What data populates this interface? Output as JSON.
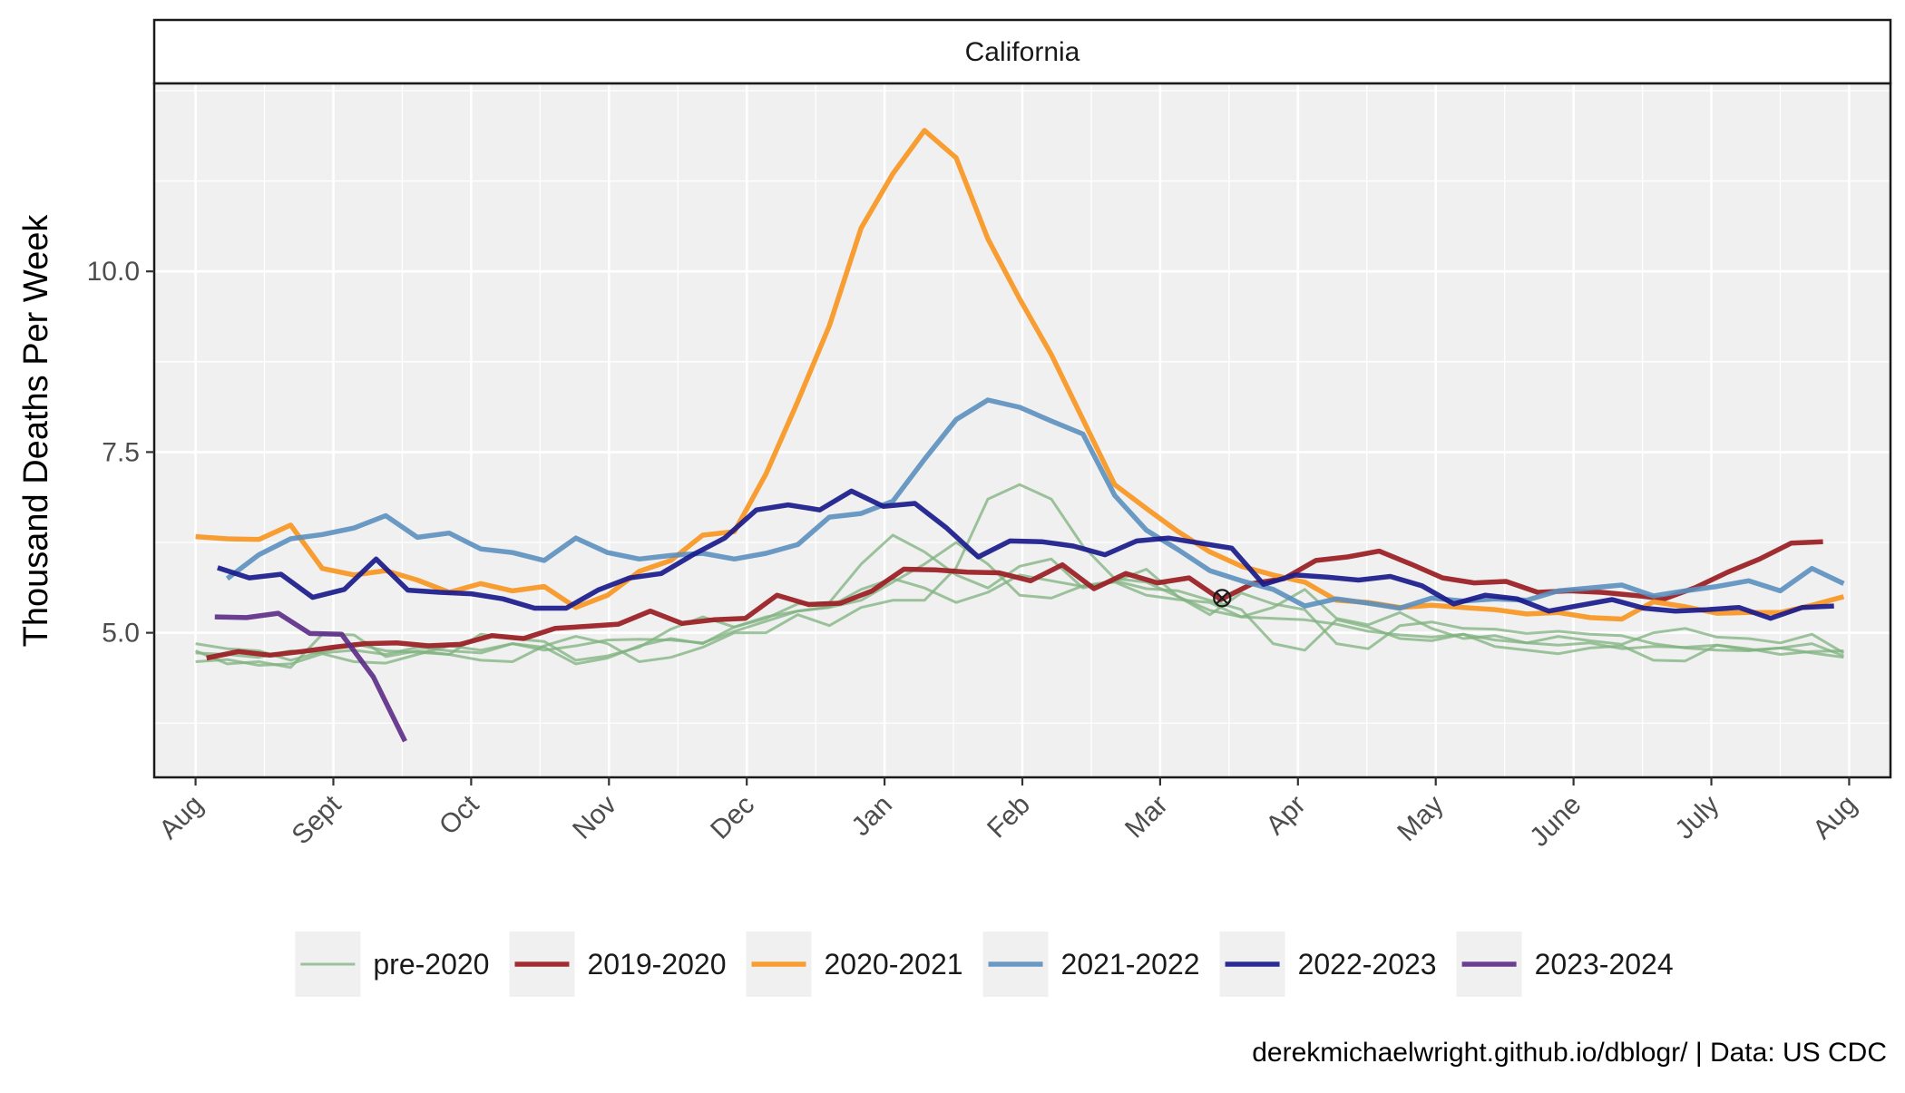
{
  "chart_data": {
    "type": "line",
    "facet_title": "California",
    "ylabel": "Thousand Deaths Per Week",
    "xlabel": "",
    "ylim": [
      3.0,
      12.6
    ],
    "yticks": [
      5.0,
      7.5,
      10.0
    ],
    "ytick_labels": [
      "5.0",
      "7.5",
      "10.0"
    ],
    "xlim": [
      -0.3,
      12.3
    ],
    "xticks": [
      0,
      1,
      2,
      3,
      4,
      5,
      6,
      7,
      8,
      9,
      10,
      11,
      12
    ],
    "xtick_labels": [
      "Aug",
      "Sept",
      "Oct",
      "Nov",
      "Dec",
      "Jan",
      "Feb",
      "Mar",
      "Apr",
      "May",
      "June",
      "July",
      "Aug"
    ],
    "x_unit": "months since Aug 1",
    "grid": true,
    "legend_position": "bottom",
    "caption": "derekmichaelwright.github.io/dblogr/ | Data: US CDC",
    "marker": {
      "x": 7.45,
      "y": 5.48,
      "symbol": "circled-x"
    },
    "series": [
      {
        "name": "pre-2020",
        "color": "#7fb27f",
        "opacity": 0.75,
        "width": 3,
        "group": "pre",
        "x": [
          0,
          0.23,
          0.46,
          0.69,
          0.92,
          1.15,
          1.38,
          1.61,
          1.84,
          2.07,
          2.3,
          2.53,
          2.76,
          2.99,
          3.22,
          3.45,
          3.68,
          3.91,
          4.14,
          4.37,
          4.6,
          4.83,
          5.06,
          5.29,
          5.52,
          5.75,
          5.98,
          6.21,
          6.44,
          6.67,
          6.9,
          7.13,
          7.36,
          7.59,
          7.82,
          8.05,
          8.28,
          8.51,
          8.74,
          8.97,
          9.2,
          9.43,
          9.66,
          9.89,
          10.12,
          10.35,
          10.58,
          10.81,
          11.04,
          11.27,
          11.5,
          11.73,
          11.96
        ],
        "y": [
          4.75,
          4.57,
          4.6,
          4.52,
          4.98,
          4.97,
          4.67,
          4.75,
          4.7,
          4.62,
          4.6,
          4.82,
          4.95,
          4.85,
          4.6,
          4.66,
          4.8,
          5.0,
          5.0,
          5.25,
          5.1,
          5.35,
          5.45,
          5.45,
          5.9,
          6.85,
          7.05,
          6.85,
          6.2,
          5.75,
          5.7,
          5.5,
          5.25,
          5.55,
          5.4,
          5.32,
          4.85,
          4.78,
          5.1,
          5.15,
          5.06,
          5.05,
          4.99,
          5.02,
          4.98,
          4.96,
          4.85,
          4.79,
          4.76,
          4.75,
          4.79,
          4.72,
          4.66
        ]
      },
      {
        "name": "pre-2020",
        "color": "#7fb27f",
        "opacity": 0.75,
        "width": 3,
        "group": "pre",
        "x": [
          0,
          0.23,
          0.46,
          0.69,
          0.92,
          1.15,
          1.38,
          1.61,
          1.84,
          2.07,
          2.3,
          2.53,
          2.76,
          2.99,
          3.22,
          3.45,
          3.68,
          3.91,
          4.14,
          4.37,
          4.6,
          4.83,
          5.06,
          5.29,
          5.52,
          5.75,
          5.98,
          6.21,
          6.44,
          6.67,
          6.9,
          7.13,
          7.36,
          7.59,
          7.82,
          8.05,
          8.28,
          8.51,
          8.74,
          8.97,
          9.2,
          9.43,
          9.66,
          9.89,
          10.12,
          10.35,
          10.58,
          10.81,
          11.04,
          11.27,
          11.5,
          11.73,
          11.96
        ],
        "y": [
          4.85,
          4.78,
          4.75,
          4.62,
          4.74,
          4.85,
          4.75,
          4.73,
          4.7,
          4.98,
          4.92,
          4.88,
          4.62,
          4.68,
          4.8,
          5.05,
          5.22,
          5.08,
          5.2,
          5.4,
          5.42,
          5.95,
          6.35,
          6.12,
          5.8,
          5.62,
          5.92,
          6.02,
          5.62,
          5.71,
          5.88,
          5.5,
          5.31,
          5.22,
          5.35,
          5.6,
          5.2,
          5.11,
          5.28,
          5.06,
          4.92,
          4.96,
          4.86,
          4.95,
          4.89,
          4.84,
          5.0,
          5.06,
          4.94,
          4.92,
          4.86,
          4.98,
          4.72
        ]
      },
      {
        "name": "pre-2020",
        "color": "#7fb27f",
        "opacity": 0.75,
        "width": 3,
        "group": "pre",
        "x": [
          0,
          0.23,
          0.46,
          0.69,
          0.92,
          1.15,
          1.38,
          1.61,
          1.84,
          2.07,
          2.3,
          2.53,
          2.76,
          2.99,
          3.22,
          3.45,
          3.68,
          3.91,
          4.14,
          4.37,
          4.6,
          4.83,
          5.06,
          5.29,
          5.52,
          5.75,
          5.98,
          6.21,
          6.44,
          6.67,
          6.9,
          7.13,
          7.36,
          7.59,
          7.82,
          8.05,
          8.28,
          8.51,
          8.74,
          8.97,
          9.2,
          9.43,
          9.66,
          9.89,
          10.12,
          10.35,
          10.58,
          10.81,
          11.04,
          11.27,
          11.5,
          11.73,
          11.96
        ],
        "y": [
          4.6,
          4.63,
          4.55,
          4.57,
          4.71,
          4.6,
          4.58,
          4.7,
          4.82,
          4.76,
          4.85,
          4.8,
          4.57,
          4.65,
          4.82,
          4.92,
          4.85,
          5.08,
          5.22,
          5.3,
          5.35,
          5.45,
          5.7,
          5.95,
          6.25,
          5.95,
          5.52,
          5.48,
          5.65,
          5.72,
          5.61,
          5.58,
          5.45,
          5.32,
          4.85,
          4.76,
          5.18,
          5.08,
          4.92,
          4.89,
          4.98,
          4.81,
          4.76,
          4.71,
          4.79,
          4.82,
          4.62,
          4.61,
          4.83,
          4.76,
          4.79,
          4.85,
          4.68
        ]
      },
      {
        "name": "pre-2020",
        "color": "#7fb27f",
        "opacity": 0.75,
        "width": 3,
        "group": "pre",
        "x": [
          0,
          0.23,
          0.46,
          0.69,
          0.92,
          1.15,
          1.38,
          1.61,
          1.84,
          2.07,
          2.3,
          2.53,
          2.76,
          2.99,
          3.22,
          3.45,
          3.68,
          3.91,
          4.14,
          4.37,
          4.6,
          4.83,
          5.06,
          5.29,
          5.52,
          5.75,
          5.98,
          6.21,
          6.44,
          6.67,
          6.9,
          7.13,
          7.36,
          7.59,
          7.82,
          8.05,
          8.28,
          8.51,
          8.74,
          8.97,
          9.2,
          9.43,
          9.66,
          9.89,
          10.12,
          10.35,
          10.58,
          10.81,
          11.04,
          11.27,
          11.5,
          11.73,
          11.96
        ],
        "y": [
          4.72,
          4.7,
          4.66,
          4.75,
          4.72,
          4.76,
          4.7,
          4.8,
          4.75,
          4.72,
          4.85,
          4.76,
          4.82,
          4.9,
          4.91,
          4.9,
          4.86,
          5.02,
          5.16,
          5.3,
          5.36,
          5.6,
          5.75,
          5.62,
          5.42,
          5.56,
          5.8,
          5.72,
          5.64,
          5.7,
          5.52,
          5.46,
          5.42,
          5.22,
          5.2,
          5.18,
          5.12,
          5.02,
          4.97,
          4.94,
          4.98,
          4.9,
          4.86,
          4.83,
          4.86,
          4.78,
          4.81,
          4.8,
          4.83,
          4.78,
          4.7,
          4.74,
          4.75
        ]
      },
      {
        "name": "2019-2020",
        "color": "#9b2226",
        "opacity": 0.95,
        "width": 5.5,
        "group": "main",
        "x": [
          0.08,
          0.31,
          0.54,
          0.77,
          1.0,
          1.23,
          1.46,
          1.69,
          1.92,
          2.15,
          2.38,
          2.61,
          2.84,
          3.07,
          3.3,
          3.53,
          3.76,
          3.99,
          4.22,
          4.45,
          4.68,
          4.91,
          5.14,
          5.37,
          5.6,
          5.83,
          6.06,
          6.29,
          6.52,
          6.75,
          6.98,
          7.21,
          7.44,
          7.67,
          7.9,
          8.13,
          8.36,
          8.59,
          8.82,
          9.05,
          9.28,
          9.51,
          9.74,
          9.97,
          10.2,
          10.43,
          10.66,
          10.89,
          11.12,
          11.35,
          11.58,
          11.81
        ],
        "y": [
          4.65,
          4.74,
          4.69,
          4.74,
          4.8,
          4.85,
          4.86,
          4.82,
          4.84,
          4.96,
          4.92,
          5.06,
          5.09,
          5.12,
          5.3,
          5.13,
          5.18,
          5.2,
          5.52,
          5.39,
          5.41,
          5.58,
          5.88,
          5.87,
          5.84,
          5.83,
          5.72,
          5.94,
          5.61,
          5.82,
          5.69,
          5.76,
          5.46,
          5.68,
          5.75,
          6.0,
          6.05,
          6.13,
          5.95,
          5.76,
          5.69,
          5.71,
          5.56,
          5.58,
          5.56,
          5.52,
          5.47,
          5.63,
          5.84,
          6.02,
          6.24,
          6.26
        ]
      },
      {
        "name": "2020-2021",
        "color": "#f7941d",
        "opacity": 0.9,
        "width": 5.5,
        "group": "main",
        "x": [
          0.0,
          0.23,
          0.46,
          0.69,
          0.92,
          1.15,
          1.38,
          1.61,
          1.84,
          2.07,
          2.3,
          2.53,
          2.76,
          2.99,
          3.22,
          3.45,
          3.68,
          3.91,
          4.14,
          4.37,
          4.6,
          4.83,
          5.06,
          5.29,
          5.52,
          5.75,
          5.98,
          6.21,
          6.44,
          6.67,
          6.9,
          7.13,
          7.36,
          7.59,
          7.82,
          8.05,
          8.28,
          8.51,
          8.74,
          8.97,
          9.2,
          9.43,
          9.66,
          9.89,
          10.12,
          10.35,
          10.58,
          10.81,
          11.04,
          11.27,
          11.5,
          11.73,
          11.96
        ],
        "y": [
          6.33,
          6.3,
          6.29,
          6.49,
          5.89,
          5.8,
          5.86,
          5.73,
          5.56,
          5.68,
          5.58,
          5.64,
          5.35,
          5.52,
          5.85,
          6.0,
          6.35,
          6.4,
          7.2,
          8.2,
          9.25,
          10.6,
          11.35,
          11.95,
          11.57,
          10.45,
          9.62,
          8.85,
          7.95,
          7.05,
          6.72,
          6.4,
          6.12,
          5.92,
          5.8,
          5.7,
          5.45,
          5.42,
          5.35,
          5.38,
          5.35,
          5.32,
          5.26,
          5.28,
          5.21,
          5.19,
          5.43,
          5.36,
          5.27,
          5.28,
          5.28,
          5.38,
          5.5
        ]
      },
      {
        "name": "2021-2022",
        "color": "#5b8fbe",
        "opacity": 0.9,
        "width": 5.5,
        "group": "main",
        "x": [
          0.23,
          0.46,
          0.69,
          0.92,
          1.15,
          1.38,
          1.61,
          1.84,
          2.07,
          2.3,
          2.53,
          2.76,
          2.99,
          3.22,
          3.45,
          3.68,
          3.91,
          4.14,
          4.37,
          4.6,
          4.83,
          5.06,
          5.29,
          5.52,
          5.75,
          5.98,
          6.21,
          6.44,
          6.67,
          6.9,
          7.13,
          7.36,
          7.59,
          7.82,
          8.05,
          8.28,
          8.51,
          8.74,
          8.97,
          9.2,
          9.43,
          9.66,
          9.89,
          10.12,
          10.35,
          10.58,
          10.81,
          11.04,
          11.27,
          11.5,
          11.73,
          11.96
        ],
        "y": [
          5.75,
          6.08,
          6.3,
          6.36,
          6.45,
          6.62,
          6.32,
          6.38,
          6.16,
          6.11,
          6.0,
          6.31,
          6.11,
          6.02,
          6.07,
          6.1,
          6.02,
          6.1,
          6.22,
          6.6,
          6.65,
          6.82,
          7.4,
          7.95,
          8.22,
          8.12,
          7.93,
          7.75,
          6.9,
          6.42,
          6.15,
          5.86,
          5.72,
          5.6,
          5.37,
          5.47,
          5.41,
          5.34,
          5.48,
          5.44,
          5.47,
          5.45,
          5.58,
          5.62,
          5.66,
          5.51,
          5.58,
          5.64,
          5.72,
          5.58,
          5.89,
          5.68
        ]
      },
      {
        "name": "2022-2023",
        "color": "#1a1a8c",
        "opacity": 0.92,
        "width": 5.5,
        "group": "main",
        "x": [
          0.16,
          0.39,
          0.62,
          0.85,
          1.08,
          1.31,
          1.54,
          1.77,
          2.0,
          2.23,
          2.46,
          2.69,
          2.92,
          3.15,
          3.38,
          3.61,
          3.84,
          4.07,
          4.3,
          4.53,
          4.76,
          4.99,
          5.22,
          5.45,
          5.68,
          5.91,
          6.14,
          6.37,
          6.6,
          6.83,
          7.06,
          7.29,
          7.52,
          7.75,
          7.98,
          8.21,
          8.44,
          8.67,
          8.9,
          9.13,
          9.36,
          9.59,
          9.82,
          10.05,
          10.28,
          10.51,
          10.74,
          10.97,
          11.2,
          11.43,
          11.66,
          11.89
        ],
        "y": [
          5.9,
          5.76,
          5.81,
          5.49,
          5.6,
          6.02,
          5.59,
          5.56,
          5.54,
          5.47,
          5.34,
          5.34,
          5.59,
          5.76,
          5.82,
          6.08,
          6.31,
          6.7,
          6.77,
          6.7,
          6.96,
          6.75,
          6.79,
          6.45,
          6.05,
          6.27,
          6.26,
          6.2,
          6.08,
          6.27,
          6.31,
          6.24,
          6.17,
          5.67,
          5.8,
          5.77,
          5.73,
          5.78,
          5.65,
          5.4,
          5.52,
          5.47,
          5.3,
          5.38,
          5.46,
          5.34,
          5.3,
          5.32,
          5.35,
          5.2,
          5.35,
          5.37
        ]
      },
      {
        "name": "2023-2024",
        "color": "#5b2a86",
        "opacity": 0.9,
        "width": 5.5,
        "group": "main",
        "x": [
          0.14,
          0.37,
          0.6,
          0.83,
          1.06,
          1.29,
          1.52
        ],
        "y": [
          5.22,
          5.21,
          5.27,
          4.99,
          4.98,
          4.39,
          3.5
        ]
      }
    ],
    "legend": [
      {
        "name": "pre-2020",
        "color": "#7fb27f",
        "width": 3,
        "opacity": 0.75
      },
      {
        "name": "2019-2020",
        "color": "#9b2226",
        "width": 5.5,
        "opacity": 0.95
      },
      {
        "name": "2020-2021",
        "color": "#f7941d",
        "width": 5.5,
        "opacity": 0.9
      },
      {
        "name": "2021-2022",
        "color": "#5b8fbe",
        "width": 5.5,
        "opacity": 0.9
      },
      {
        "name": "2022-2023",
        "color": "#1a1a8c",
        "width": 5.5,
        "opacity": 0.92
      },
      {
        "name": "2023-2024",
        "color": "#5b2a86",
        "width": 5.5,
        "opacity": 0.9
      }
    ]
  }
}
